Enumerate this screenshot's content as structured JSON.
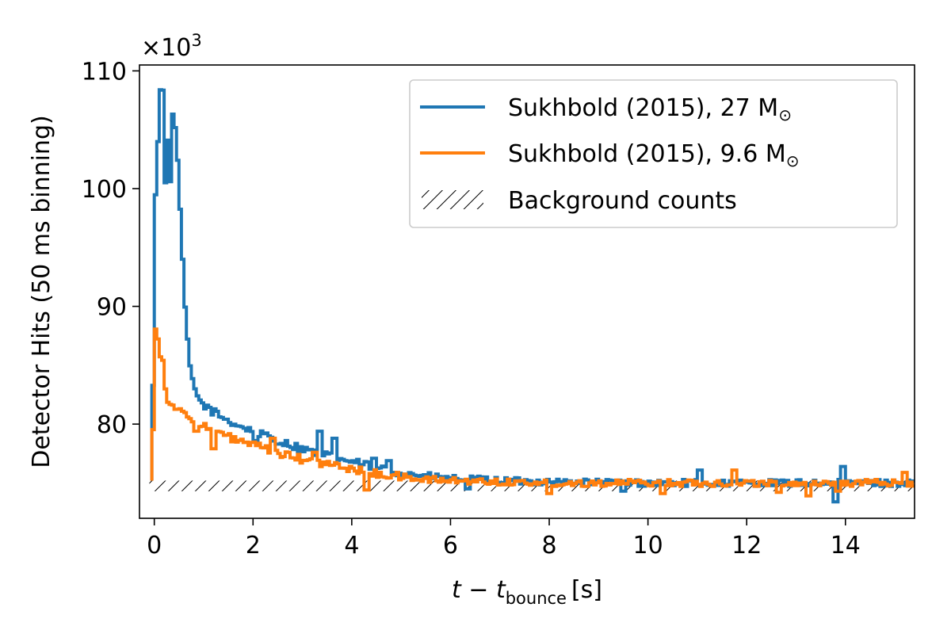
{
  "chart_data": {
    "type": "line",
    "title": "",
    "xlabel": "t − t_bounce [s]",
    "xlabel_var": "t − t",
    "xlabel_sub": "bounce",
    "xlabel_unit": "[s]",
    "ylabel": "Detector Hits (50 ms binning)",
    "y_multiplier": "×10",
    "y_multiplier_exp": "3",
    "xlim": [
      -0.3,
      15.4
    ],
    "ylim": [
      72.0,
      110.5
    ],
    "x_ticks": [
      0,
      2,
      4,
      6,
      8,
      10,
      12,
      14
    ],
    "x_tick_labels": [
      "0",
      "2",
      "4",
      "6",
      "8",
      "10",
      "12",
      "14"
    ],
    "y_ticks": [
      80,
      90,
      100,
      110
    ],
    "y_tick_labels": [
      "80",
      "90",
      "100",
      "110"
    ],
    "legend_position": "upper-right",
    "grid": false,
    "bin_width": 0.05,
    "series": [
      {
        "name": "Sukhbold (2015), 27 M☉",
        "name_text": "Sukhbold (2015), 27 M",
        "color": "#1f77b4",
        "keypoints": [
          [
            -0.05,
            75.2
          ],
          [
            -0.02,
            84.7
          ],
          [
            0.0,
            99.3
          ],
          [
            0.05,
            100.0
          ],
          [
            0.1,
            108.3
          ],
          [
            0.18,
            108.3
          ],
          [
            0.23,
            99.8
          ],
          [
            0.28,
            104.8
          ],
          [
            0.33,
            100.0
          ],
          [
            0.38,
            106.8
          ],
          [
            0.45,
            104.6
          ],
          [
            0.55,
            95.8
          ],
          [
            0.65,
            88.0
          ],
          [
            0.75,
            84.0
          ],
          [
            0.85,
            82.5
          ],
          [
            1.0,
            81.6
          ],
          [
            1.25,
            80.9
          ],
          [
            1.5,
            80.3
          ],
          [
            1.75,
            79.8
          ],
          [
            2.0,
            79.4
          ],
          [
            2.5,
            78.6
          ],
          [
            3.0,
            77.9
          ],
          [
            3.5,
            77.3
          ],
          [
            4.0,
            76.8
          ],
          [
            4.5,
            76.3
          ],
          [
            5.0,
            75.9
          ],
          [
            5.5,
            75.6
          ],
          [
            6.0,
            75.4
          ],
          [
            7.0,
            75.2
          ],
          [
            8.0,
            75.1
          ],
          [
            10.0,
            75.0
          ],
          [
            12.0,
            75.0
          ],
          [
            15.4,
            75.0
          ]
        ],
        "spikes": [
          [
            2.05,
            78.6
          ],
          [
            2.5,
            78.3
          ],
          [
            3.35,
            79.4
          ],
          [
            3.65,
            78.8
          ],
          [
            4.45,
            77.1
          ],
          [
            4.75,
            76.9
          ],
          [
            13.95,
            76.4
          ],
          [
            11.05,
            76.1
          ],
          [
            13.8,
            73.4
          ],
          [
            6.35,
            74.5
          ],
          [
            9.5,
            74.3
          ]
        ]
      },
      {
        "name": "Sukhbold (2015), 9.6 M☉",
        "name_text": "Sukhbold (2015), 9.6 M",
        "color": "#ff7f0e",
        "keypoints": [
          [
            -0.05,
            75.2
          ],
          [
            -0.02,
            80.6
          ],
          [
            0.0,
            86.0
          ],
          [
            0.05,
            90.3
          ],
          [
            0.1,
            84.5
          ],
          [
            0.15,
            87.1
          ],
          [
            0.2,
            83.5
          ],
          [
            0.28,
            82.0
          ],
          [
            0.4,
            81.5
          ],
          [
            0.55,
            81.0
          ],
          [
            0.75,
            80.5
          ],
          [
            1.0,
            79.8
          ],
          [
            1.25,
            79.3
          ],
          [
            1.5,
            78.9
          ],
          [
            2.0,
            78.2
          ],
          [
            2.5,
            77.5
          ],
          [
            3.0,
            77.0
          ],
          [
            3.5,
            76.6
          ],
          [
            4.0,
            76.2
          ],
          [
            4.5,
            75.8
          ],
          [
            5.0,
            75.5
          ],
          [
            5.5,
            75.3
          ],
          [
            6.0,
            75.2
          ],
          [
            8.0,
            75.0
          ],
          [
            12.0,
            75.0
          ],
          [
            15.4,
            75.0
          ]
        ],
        "spikes": [
          [
            0.85,
            79.4
          ],
          [
            1.2,
            77.9
          ],
          [
            2.4,
            78.8
          ],
          [
            3.25,
            77.6
          ],
          [
            4.3,
            74.4
          ],
          [
            8.0,
            74.1
          ],
          [
            10.3,
            74.1
          ],
          [
            11.75,
            76.1
          ],
          [
            12.65,
            74.2
          ],
          [
            13.25,
            73.9
          ],
          [
            13.85,
            74.3
          ],
          [
            15.2,
            75.9
          ]
        ]
      }
    ],
    "background": {
      "name": "Background counts",
      "level": 75.0,
      "band": [
        74.3,
        75.2
      ]
    }
  },
  "legend": {
    "sun_symbol": "⊙",
    "sun_symbol_name": "sun-icon",
    "m_symbol": "M"
  }
}
